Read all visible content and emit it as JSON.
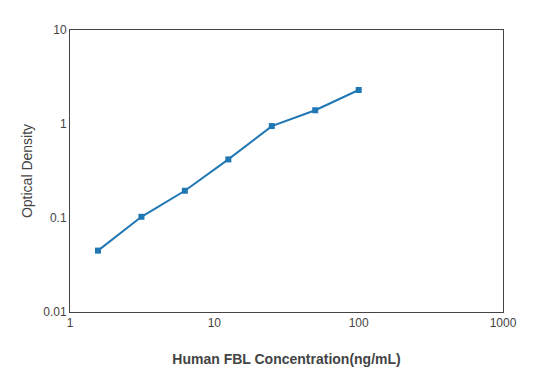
{
  "chart_data": {
    "type": "line",
    "x": [
      1.563,
      3.125,
      6.25,
      12.5,
      25,
      50,
      100
    ],
    "values": [
      0.045,
      0.103,
      0.195,
      0.42,
      0.95,
      1.4,
      2.3
    ],
    "xlabel": "Human FBL Concentration(ng/mL)",
    "ylabel": "Optical Density",
    "xlim": [
      1,
      1000
    ],
    "ylim": [
      0.01,
      10
    ],
    "xticks": [
      1,
      10,
      100,
      1000
    ],
    "yticks": [
      0.01,
      0.1,
      1,
      10
    ],
    "log": true,
    "grid": false,
    "marker": "square"
  }
}
